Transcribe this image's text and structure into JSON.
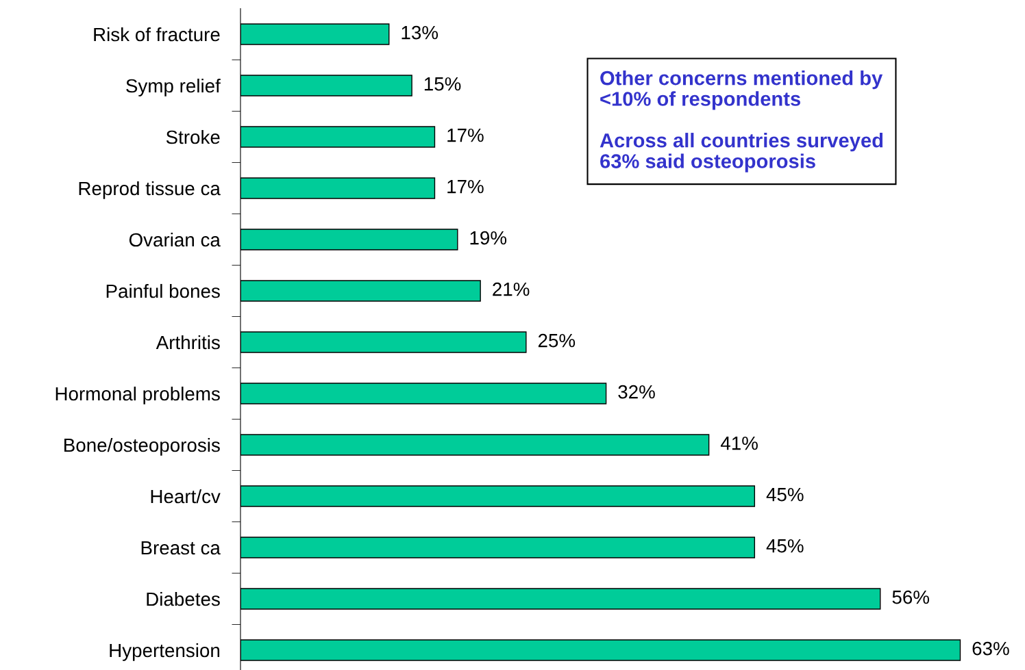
{
  "chart_data": {
    "type": "bar",
    "orientation": "horizontal",
    "categories": [
      "Risk of fracture",
      "Symp relief",
      "Stroke",
      "Reprod tissue ca",
      "Ovarian ca",
      "Painful bones",
      "Arthritis",
      "Hormonal problems",
      "Bone/osteoporosis",
      "Heart/cv",
      "Breast ca",
      "Diabetes",
      "Hypertension"
    ],
    "values": [
      13,
      15,
      17,
      17,
      19,
      21,
      25,
      32,
      41,
      45,
      45,
      56,
      63
    ],
    "value_labels": [
      "13%",
      "15%",
      "17%",
      "17%",
      "19%",
      "21%",
      "25%",
      "32%",
      "41%",
      "45%",
      "45%",
      "56%",
      "63%"
    ],
    "color": "#00cc99",
    "tick_labels": "y",
    "grid": false,
    "legend": false,
    "annotations": [
      "Other concerns mentioned by\n<10% of respondents",
      "Across all countries surveyed\n63% said osteoporosis"
    ]
  }
}
